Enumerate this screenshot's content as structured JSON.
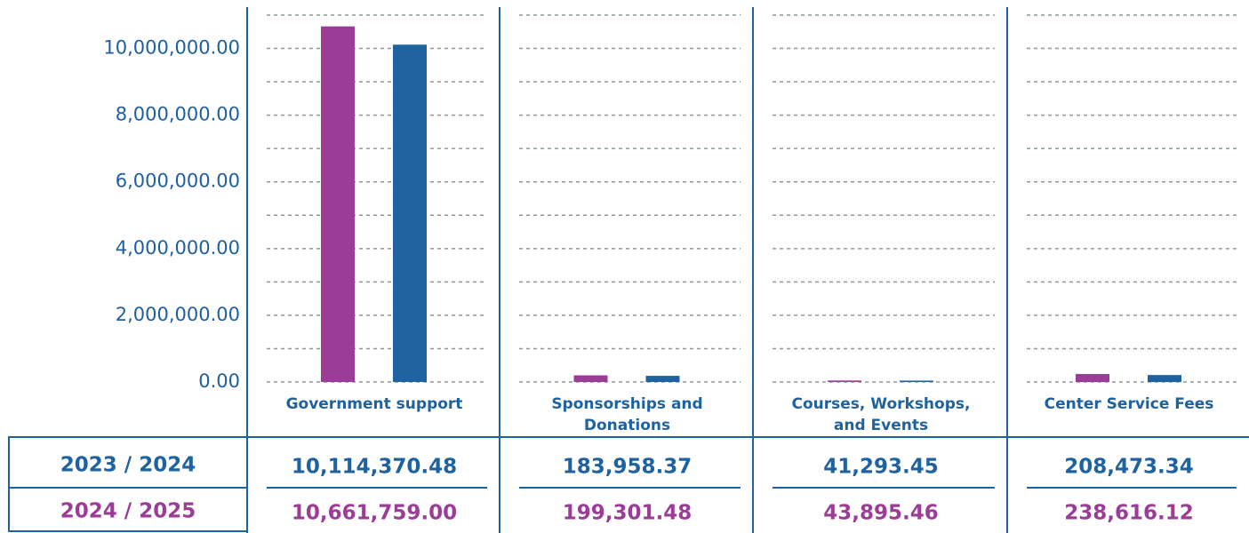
{
  "chart_data": {
    "type": "bar",
    "categories": [
      "Government support",
      "Sponsorships and Donations",
      "Courses, Workshops, and Events",
      "Center Service Fees"
    ],
    "series": [
      {
        "name": "2023 / 2024",
        "color": "#1f62a0",
        "values": [
          10114370.48,
          183958.37,
          41293.45,
          208473.34
        ],
        "value_labels": [
          "10,114,370.48",
          "183,958.37",
          "41,293.45",
          "208,473.34"
        ]
      },
      {
        "name": "2024 / 2025",
        "color": "#9b3d96",
        "values": [
          10661759.0,
          199301.48,
          43895.46,
          238616.12
        ],
        "value_labels": [
          "10,661,759.00",
          "199,301.48",
          "43,895.46",
          "238,616.12"
        ]
      }
    ],
    "ylim": [
      0,
      11000000
    ],
    "yticks": [
      {
        "value": 0,
        "label": "0.00"
      },
      {
        "value": 2000000,
        "label": "2,000,000.00"
      },
      {
        "value": 4000000,
        "label": "4,000,000.00"
      },
      {
        "value": 6000000,
        "label": "6,000,000.00"
      },
      {
        "value": 8000000,
        "label": "8,000,000.00"
      },
      {
        "value": 10000000,
        "label": "10,000,000.00"
      }
    ],
    "yticks_minor": [
      1000000,
      3000000,
      5000000,
      7000000,
      9000000,
      11000000
    ],
    "grid": true
  }
}
